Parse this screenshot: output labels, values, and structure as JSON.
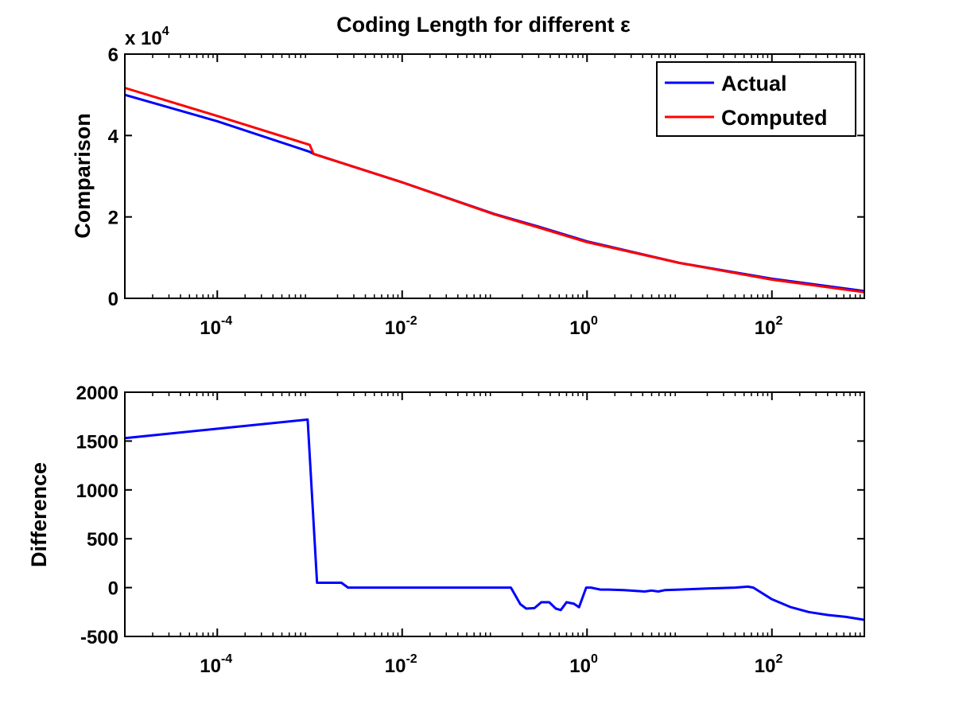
{
  "title": "Coding Length for different ε",
  "chart_data": [
    {
      "type": "line",
      "xscale": "log",
      "xlim": [
        1e-05,
        1000
      ],
      "ylim": [
        0,
        60000
      ],
      "ylabel": "Comparison",
      "y_multiplier": "x 10",
      "y_multiplier_exp": "4",
      "yticks": [
        0,
        20000,
        40000,
        60000
      ],
      "ytick_labels": [
        "0",
        "2",
        "4",
        "6"
      ],
      "xticks": [
        0.0001,
        0.01,
        1,
        100
      ],
      "xtick_labels": [
        {
          "base": "10",
          "exp": "-4"
        },
        {
          "base": "10",
          "exp": "-2"
        },
        {
          "base": "10",
          "exp": "0"
        },
        {
          "base": "10",
          "exp": "2"
        }
      ],
      "legend": "top-right",
      "series": [
        {
          "name": "Actual",
          "color": "#0000ff",
          "x": [
            1e-05,
            0.0001,
            0.001,
            0.0011,
            0.01,
            0.1,
            0.3,
            1,
            10,
            100,
            1000
          ],
          "y": [
            50000,
            43500,
            36000,
            35500,
            28500,
            20700,
            17600,
            14000,
            8700,
            4800,
            1800
          ]
        },
        {
          "name": "Computed",
          "color": "#ff0000",
          "x": [
            1e-05,
            0.0001,
            0.001,
            0.0011,
            0.01,
            0.1,
            0.3,
            1,
            10,
            100,
            1000
          ],
          "y": [
            51700,
            44800,
            37700,
            35500,
            28500,
            20600,
            17400,
            13800,
            8700,
            4600,
            1500
          ]
        }
      ]
    },
    {
      "type": "line",
      "xscale": "log",
      "xlim": [
        1e-05,
        1000
      ],
      "ylim": [
        -500,
        2000
      ],
      "ylabel": "Difference",
      "yticks": [
        -500,
        0,
        500,
        1000,
        1500,
        2000
      ],
      "ytick_labels": [
        "-500",
        "0",
        "500",
        "1000",
        "1500",
        "2000"
      ],
      "xticks": [
        0.0001,
        0.01,
        1,
        100
      ],
      "xtick_labels": [
        {
          "base": "10",
          "exp": "-4"
        },
        {
          "base": "10",
          "exp": "-2"
        },
        {
          "base": "10",
          "exp": "0"
        },
        {
          "base": "10",
          "exp": "2"
        }
      ],
      "series": [
        {
          "color": "#0000ff",
          "x": [
            1e-05,
            0.00095,
            0.0012,
            0.0022,
            0.0026,
            0.15,
            0.19,
            0.22,
            0.27,
            0.32,
            0.39,
            0.46,
            0.52,
            0.6,
            0.72,
            0.82,
            0.98,
            1.1,
            1.4,
            1.7,
            2.5,
            4.2,
            5,
            5.9,
            7,
            10,
            20,
            40,
            55,
            63,
            100,
            160,
            250,
            400,
            630,
            1000
          ],
          "y": [
            1530,
            1720,
            50,
            50,
            0,
            0,
            -170,
            -215,
            -210,
            -150,
            -150,
            -215,
            -230,
            -150,
            -165,
            -200,
            0,
            0,
            -20,
            -20,
            -25,
            -40,
            -30,
            -40,
            -25,
            -20,
            -10,
            0,
            10,
            0,
            -120,
            -200,
            -250,
            -280,
            -300,
            -330
          ]
        }
      ]
    }
  ]
}
